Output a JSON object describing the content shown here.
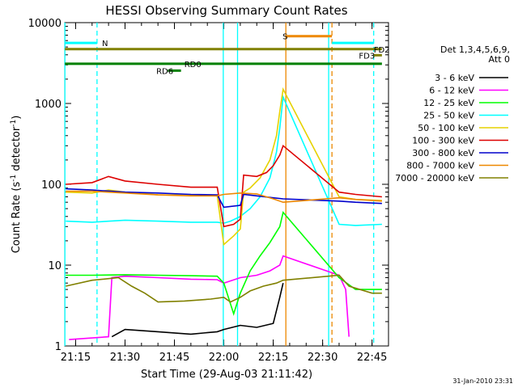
{
  "chart_data": {
    "type": "line",
    "title": "HESSI Observing Summary Count Rates",
    "xlabel": "Start Time (29-Aug-03 21:11:42)",
    "ylabel_main": "Count Rate (s",
    "ylabel_sup1": "-1",
    "ylabel_mid": " detector",
    "ylabel_sup2": "-1",
    "ylabel_end": ")",
    "date_stamp": "31-Jan-2010 23:31",
    "yscale": "log",
    "ylim": [
      1,
      10000
    ],
    "xlim": [
      "21:11:42",
      "22:50:00"
    ],
    "x_ticks": [
      "21:15",
      "21:30",
      "21:45",
      "22:00",
      "22:15",
      "22:30",
      "22:45"
    ],
    "y_ticks": [
      {
        "label": "1",
        "value": 1
      },
      {
        "label": "10",
        "value": 10
      },
      {
        "label": "100",
        "value": 100
      },
      {
        "label": "1000",
        "value": 1000
      },
      {
        "label": "10000",
        "value": 10000
      }
    ],
    "legend_title_1": "Det 1,3,4,5,6,9,",
    "legend_title_2": "Att 0",
    "legend": [
      {
        "label": "3 - 6 keV",
        "color": "#000000"
      },
      {
        "label": "6 - 12 keV",
        "color": "#ff00ff"
      },
      {
        "label": "12 - 25 keV",
        "color": "#00ff00"
      },
      {
        "label": "25 - 50 keV",
        "color": "#00ffff"
      },
      {
        "label": "50 - 100 keV",
        "color": "#e6d200"
      },
      {
        "label": "100 - 300 keV",
        "color": "#dd0000"
      },
      {
        "label": "300 - 800 keV",
        "color": "#0000cc"
      },
      {
        "label": "800 - 7000 keV",
        "color": "#ee8800"
      },
      {
        "label": "7000 - 20000 keV",
        "color": "#808000"
      }
    ],
    "series": [
      {
        "name": "3 - 6 keV",
        "color": "#000000",
        "points": [
          [
            "21:26",
            1.3
          ],
          [
            "21:30",
            1.6
          ],
          [
            "21:40",
            1.5
          ],
          [
            "21:50",
            1.4
          ],
          [
            "21:58",
            1.5
          ],
          [
            "22:00",
            1.6
          ],
          [
            "22:05",
            1.8
          ],
          [
            "22:10",
            1.7
          ],
          [
            "22:15",
            1.9
          ],
          [
            "22:17",
            4
          ],
          [
            "22:18",
            6
          ]
        ]
      },
      {
        "name": "6 - 12 keV",
        "color": "#ff00ff",
        "points": [
          [
            "21:13",
            1.2
          ],
          [
            "21:25",
            1.3
          ],
          [
            "21:26",
            7
          ],
          [
            "21:30",
            7.3
          ],
          [
            "21:40",
            7.0
          ],
          [
            "21:50",
            6.7
          ],
          [
            "21:58",
            6.6
          ],
          [
            "22:00",
            6.0
          ],
          [
            "22:05",
            7.0
          ],
          [
            "22:10",
            7.5
          ],
          [
            "22:14",
            8.5
          ],
          [
            "22:17",
            10
          ],
          [
            "22:18",
            13
          ],
          [
            "22:35",
            7.5
          ],
          [
            "22:37",
            5
          ],
          [
            "22:38",
            1.3
          ]
        ]
      },
      {
        "name": "12 - 25 keV",
        "color": "#00ff00",
        "points": [
          [
            "21:12",
            7.5
          ],
          [
            "21:20",
            7.5
          ],
          [
            "21:30",
            7.6
          ],
          [
            "21:40",
            7.5
          ],
          [
            "21:50",
            7.4
          ],
          [
            "21:58",
            7.3
          ],
          [
            "22:00",
            6.0
          ],
          [
            "22:03",
            2.5
          ],
          [
            "22:05",
            4.5
          ],
          [
            "22:08",
            8.5
          ],
          [
            "22:11",
            13
          ],
          [
            "22:14",
            19
          ],
          [
            "22:17",
            30
          ],
          [
            "22:18",
            45
          ],
          [
            "22:35",
            7
          ],
          [
            "22:40",
            5
          ],
          [
            "22:48",
            5
          ]
        ]
      },
      {
        "name": "25 - 50 keV",
        "color": "#00ffff",
        "points": [
          [
            "21:12",
            35
          ],
          [
            "21:20",
            34
          ],
          [
            "21:30",
            36
          ],
          [
            "21:40",
            35
          ],
          [
            "21:50",
            34
          ],
          [
            "21:58",
            34
          ],
          [
            "22:00",
            33
          ],
          [
            "22:02",
            35
          ],
          [
            "22:05",
            40
          ],
          [
            "22:08",
            50
          ],
          [
            "22:11",
            70
          ],
          [
            "22:14",
            120
          ],
          [
            "22:16",
            250
          ],
          [
            "22:17",
            500
          ],
          [
            "22:18",
            1200
          ],
          [
            "22:35",
            32
          ],
          [
            "22:40",
            31
          ],
          [
            "22:48",
            32
          ]
        ]
      },
      {
        "name": "50 - 100 keV",
        "color": "#e6d200",
        "points": [
          [
            "21:12",
            80
          ],
          [
            "21:20",
            78
          ],
          [
            "21:25",
            85
          ],
          [
            "21:30",
            80
          ],
          [
            "21:40",
            74
          ],
          [
            "21:50",
            73
          ],
          [
            "21:58",
            72
          ],
          [
            "22:00",
            18
          ],
          [
            "22:03",
            23
          ],
          [
            "22:05",
            28
          ],
          [
            "22:06",
            80
          ],
          [
            "22:08",
            90
          ],
          [
            "22:11",
            120
          ],
          [
            "22:14",
            200
          ],
          [
            "22:16",
            400
          ],
          [
            "22:17",
            800
          ],
          [
            "22:18",
            1500
          ],
          [
            "22:35",
            70
          ],
          [
            "22:40",
            65
          ],
          [
            "22:48",
            63
          ]
        ]
      },
      {
        "name": "100 - 300 keV",
        "color": "#dd0000",
        "points": [
          [
            "21:12",
            100
          ],
          [
            "21:20",
            105
          ],
          [
            "21:25",
            125
          ],
          [
            "21:30",
            110
          ],
          [
            "21:40",
            100
          ],
          [
            "21:50",
            92
          ],
          [
            "21:58",
            92
          ],
          [
            "22:00",
            30
          ],
          [
            "22:03",
            32
          ],
          [
            "22:05",
            37
          ],
          [
            "22:06",
            130
          ],
          [
            "22:10",
            125
          ],
          [
            "22:13",
            140
          ],
          [
            "22:15",
            170
          ],
          [
            "22:17",
            230
          ],
          [
            "22:18",
            300
          ],
          [
            "22:35",
            80
          ],
          [
            "22:40",
            75
          ],
          [
            "22:48",
            70
          ]
        ]
      },
      {
        "name": "300 - 800 keV",
        "color": "#0000cc",
        "points": [
          [
            "21:12",
            88
          ],
          [
            "21:20",
            85
          ],
          [
            "21:30",
            80
          ],
          [
            "21:40",
            78
          ],
          [
            "21:50",
            75
          ],
          [
            "21:58",
            74
          ],
          [
            "22:00",
            52
          ],
          [
            "22:05",
            55
          ],
          [
            "22:06",
            75
          ],
          [
            "22:10",
            72
          ],
          [
            "22:15",
            68
          ],
          [
            "22:18",
            66
          ],
          [
            "22:35",
            62
          ],
          [
            "22:40",
            60
          ],
          [
            "22:48",
            58
          ]
        ]
      },
      {
        "name": "800 - 7000 keV",
        "color": "#ee8800",
        "points": [
          [
            "21:12",
            82
          ],
          [
            "21:20",
            82
          ],
          [
            "21:30",
            78
          ],
          [
            "21:40",
            74
          ],
          [
            "21:50",
            72
          ],
          [
            "21:58",
            72
          ],
          [
            "22:00",
            75
          ],
          [
            "22:05",
            78
          ],
          [
            "22:10",
            76
          ],
          [
            "22:15",
            66
          ],
          [
            "22:18",
            60
          ],
          [
            "22:35",
            68
          ],
          [
            "22:40",
            65
          ],
          [
            "22:48",
            62
          ]
        ]
      },
      {
        "name": "7000 - 20000 keV",
        "color": "#808000",
        "points": [
          [
            "21:12",
            5.5
          ],
          [
            "21:20",
            6.5
          ],
          [
            "21:28",
            7.0
          ],
          [
            "21:32",
            5.5
          ],
          [
            "21:36",
            4.5
          ],
          [
            "21:40",
            3.5
          ],
          [
            "21:48",
            3.6
          ],
          [
            "21:56",
            3.8
          ],
          [
            "22:00",
            4.0
          ],
          [
            "22:02",
            3.5
          ],
          [
            "22:05",
            4.0
          ],
          [
            "22:08",
            4.8
          ],
          [
            "22:12",
            5.5
          ],
          [
            "22:16",
            6.0
          ],
          [
            "22:18",
            6.5
          ],
          [
            "22:35",
            7.5
          ],
          [
            "22:38",
            5.5
          ],
          [
            "22:45",
            4.5
          ],
          [
            "22:48",
            4.5
          ]
        ]
      }
    ],
    "vertical_markers": [
      {
        "time": "21:11:45",
        "color": "#00ffff",
        "style": "solid"
      },
      {
        "time": "21:21:30",
        "color": "#00ffff",
        "style": "dashed"
      },
      {
        "time": "21:59:50",
        "color": "#00ffff",
        "style": "solid"
      },
      {
        "time": "22:04:10",
        "color": "#00ffff",
        "style": "solid"
      },
      {
        "time": "22:18:50",
        "color": "#ee8800",
        "style": "solid"
      },
      {
        "time": "22:31:50",
        "color": "#00ffff",
        "style": "solid"
      },
      {
        "time": "22:32:50",
        "color": "#ee8800",
        "style": "dashed"
      },
      {
        "time": "22:45:30",
        "color": "#00ffff",
        "style": "dashed"
      }
    ],
    "flag_bars": [
      {
        "label": "N",
        "color": "#00ffff",
        "segments": [
          [
            "21:11:45",
            "21:21:30"
          ],
          [
            "22:32:50",
            "22:45:30"
          ]
        ],
        "level": 5600,
        "label_at": "21:23"
      },
      {
        "label": "S",
        "color": "#ee8800",
        "segments": [
          [
            "22:18:50",
            "22:32:50"
          ]
        ],
        "level": 6800,
        "label_at": "22:17:50"
      },
      {
        "label": "FD2",
        "color": "#808000",
        "segments": [
          [
            "21:11:45",
            "22:48:00"
          ]
        ],
        "level": 4700,
        "label_at": "22:45:30"
      },
      {
        "label": "FD3",
        "color": "#808000",
        "segments": [
          [
            "22:45:30",
            "22:48:00"
          ]
        ],
        "level": 3950,
        "label_at": "22:41:00"
      },
      {
        "label": "RD0",
        "color": "#008000",
        "segments": [
          [
            "21:11:45",
            "22:48:00"
          ]
        ],
        "level": 3100,
        "label_at": "21:48:00"
      },
      {
        "label": "RD6",
        "color": "#008000",
        "segments": [
          [
            "21:43:00",
            "21:47:00"
          ]
        ],
        "level": 2550,
        "label_at": "21:39:30"
      }
    ]
  }
}
